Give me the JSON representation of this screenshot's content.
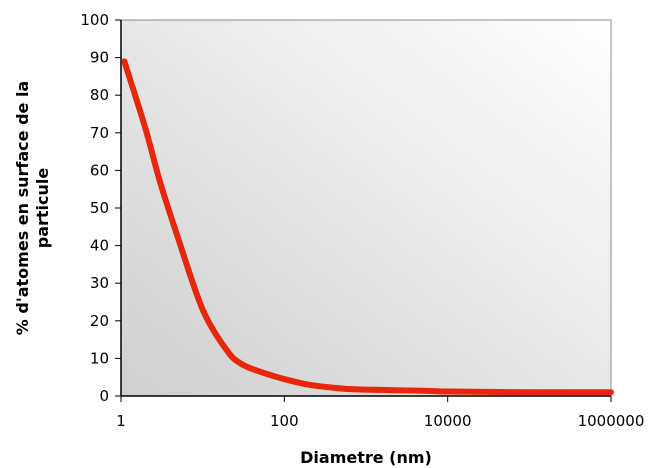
{
  "chart_data": {
    "type": "line",
    "title": "",
    "xlabel": "Diametre (nm)",
    "ylabel_lines": [
      "% d'atomes en surface de la",
      "particule"
    ],
    "x_scale": "log",
    "xlim": [
      1,
      1000000
    ],
    "ylim": [
      0,
      100
    ],
    "x_ticks": [
      1,
      100,
      10000,
      1000000
    ],
    "x_tick_labels": [
      "1",
      "100",
      "10000",
      "1000000"
    ],
    "y_ticks": [
      0,
      10,
      20,
      30,
      40,
      50,
      60,
      70,
      80,
      90,
      100
    ],
    "y_tick_labels": [
      "0",
      "10",
      "20",
      "30",
      "40",
      "50",
      "60",
      "70",
      "80",
      "90",
      "100"
    ],
    "grid": false,
    "legend": "none",
    "plot_background": "gradient light-gray to dark-gray",
    "series": [
      {
        "color": "#e8260c",
        "x": [
          1.1,
          2,
          3,
          5,
          10,
          20,
          30,
          50,
          100,
          200,
          500,
          1000,
          5000,
          10000,
          100000,
          1000000
        ],
        "y": [
          89,
          71,
          57,
          42,
          23,
          12,
          8.5,
          6.5,
          4.5,
          3,
          2,
          1.7,
          1.4,
          1.2,
          1,
          1
        ]
      }
    ]
  }
}
